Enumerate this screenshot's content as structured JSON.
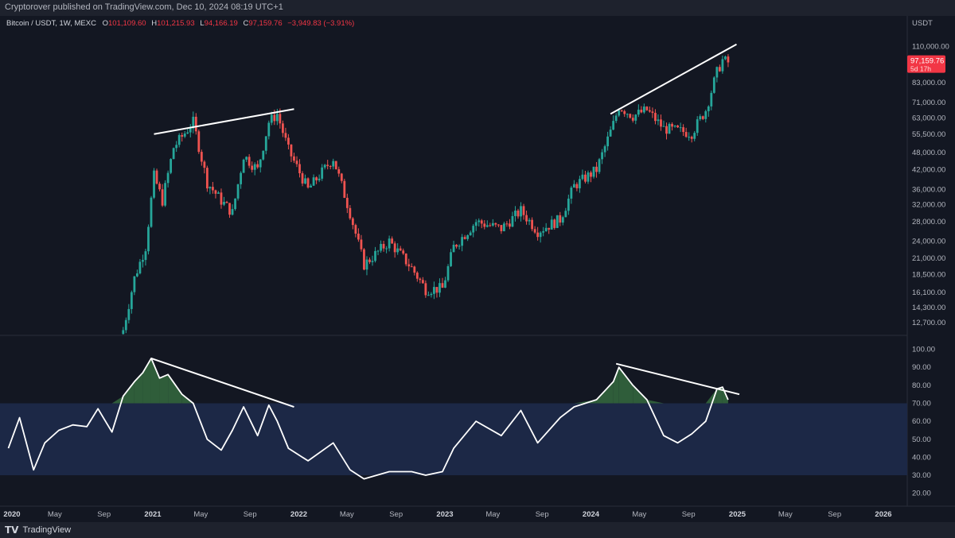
{
  "header": {
    "publisher": "Cryptorover published on TradingView.com, Dec 10, 2024 08:19 UTC+1"
  },
  "legend": {
    "symbol": "Bitcoin / USDT, 1W, MEXC",
    "o_label": "O",
    "o_value": "101,109.60",
    "h_label": "H",
    "h_value": "101,215.93",
    "l_label": "L",
    "l_value": "94,166.19",
    "c_label": "C",
    "c_value": "97,159.76",
    "change": "−3,949.83 (−3.91%)"
  },
  "footer": {
    "brand": "TradingView"
  },
  "colors": {
    "background": "#131722",
    "up": "#26a69a",
    "down": "#ef5350",
    "rsi_line": "#ffffff",
    "rsi_band": "#1c2846",
    "rsi_fill": "#2f5d3a",
    "price_label_bg": "#f23645"
  },
  "chart_data": [
    {
      "type": "candlestick",
      "panel": "price",
      "scale": "log",
      "currency_label": "USDT",
      "price_label": "97,159.76",
      "countdown_label": "5d 17h",
      "y_ticks": [
        "110,000.00",
        "97,000.00",
        "83,000.00",
        "71,000.00",
        "63,000.00",
        "55,500.00",
        "48,000.00",
        "42,000.00",
        "36,000.00",
        "32,000.00",
        "28,000.00",
        "24,000.00",
        "21,000.00",
        "18,500.00",
        "16,100.00",
        "14,300.00",
        "12,700.00"
      ],
      "y_tick_values": [
        110000,
        97000,
        83000,
        71000,
        63000,
        55500,
        48000,
        42000,
        36000,
        32000,
        28000,
        24000,
        21000,
        18500,
        16100,
        14300,
        12700
      ],
      "ylim": [
        11800,
        122000
      ],
      "series": [
        {
          "date": "2020-10-19",
          "value": 12000
        },
        {
          "date": "2020-11-16",
          "value": 18000
        },
        {
          "date": "2020-12-14",
          "value": 23000
        },
        {
          "date": "2021-01-04",
          "value": 40000
        },
        {
          "date": "2021-01-25",
          "value": 33000
        },
        {
          "date": "2021-02-22",
          "value": 50000
        },
        {
          "date": "2021-04-12",
          "value": 61000
        },
        {
          "date": "2021-05-17",
          "value": 38000
        },
        {
          "date": "2021-06-21",
          "value": 33000
        },
        {
          "date": "2021-07-19",
          "value": 30000
        },
        {
          "date": "2021-08-16",
          "value": 47000
        },
        {
          "date": "2021-09-20",
          "value": 42000
        },
        {
          "date": "2021-10-18",
          "value": 61000
        },
        {
          "date": "2021-11-08",
          "value": 65000
        },
        {
          "date": "2021-12-06",
          "value": 49000
        },
        {
          "date": "2022-01-24",
          "value": 36000
        },
        {
          "date": "2022-03-28",
          "value": 46000
        },
        {
          "date": "2022-05-09",
          "value": 30000
        },
        {
          "date": "2022-06-13",
          "value": 20000
        },
        {
          "date": "2022-08-15",
          "value": 24000
        },
        {
          "date": "2022-10-10",
          "value": 19500
        },
        {
          "date": "2022-11-14",
          "value": 16500
        },
        {
          "date": "2022-12-26",
          "value": 16600
        },
        {
          "date": "2023-01-23",
          "value": 23000
        },
        {
          "date": "2023-03-20",
          "value": 28000
        },
        {
          "date": "2023-05-22",
          "value": 26500
        },
        {
          "date": "2023-07-10",
          "value": 30500
        },
        {
          "date": "2023-08-21",
          "value": 26000
        },
        {
          "date": "2023-10-16",
          "value": 28500
        },
        {
          "date": "2023-11-20",
          "value": 37000
        },
        {
          "date": "2024-01-15",
          "value": 42000
        },
        {
          "date": "2024-02-26",
          "value": 60000
        },
        {
          "date": "2024-03-11",
          "value": 69000
        },
        {
          "date": "2024-04-15",
          "value": 64000
        },
        {
          "date": "2024-05-20",
          "value": 67000
        },
        {
          "date": "2024-07-01",
          "value": 58000
        },
        {
          "date": "2024-08-05",
          "value": 57000
        },
        {
          "date": "2024-09-09",
          "value": 56000
        },
        {
          "date": "2024-10-14",
          "value": 67000
        },
        {
          "date": "2024-11-11",
          "value": 90000
        },
        {
          "date": "2024-11-25",
          "value": 99000
        },
        {
          "date": "2024-12-09",
          "value": 97159.76
        }
      ],
      "trendlines": [
        {
          "from": {
            "date": "2021-01-04",
            "value": 55500
          },
          "to": {
            "date": "2021-12-20",
            "value": 67500
          }
        },
        {
          "from": {
            "date": "2024-02-19",
            "value": 65000
          },
          "to": {
            "date": "2024-12-30",
            "value": 112000
          }
        }
      ]
    },
    {
      "type": "line",
      "panel": "rsi",
      "ylim": [
        15,
        106
      ],
      "y_ticks": [
        "100.00",
        "90.00",
        "80.00",
        "70.00",
        "60.00",
        "50.00",
        "40.00",
        "30.00",
        "20.00"
      ],
      "y_tick_values": [
        100,
        90,
        80,
        70,
        60,
        50,
        40,
        30,
        20
      ],
      "band": [
        30,
        70
      ],
      "series": [
        {
          "name": "RSI",
          "x": [
            "2020-01-06",
            "2020-02-03",
            "2020-03-09",
            "2020-04-06",
            "2020-05-11",
            "2020-06-15",
            "2020-07-20",
            "2020-08-17",
            "2020-09-21",
            "2020-10-19",
            "2020-11-16",
            "2020-12-07",
            "2020-12-28",
            "2021-01-18",
            "2021-02-08",
            "2021-03-15",
            "2021-04-12",
            "2021-05-17",
            "2021-06-21",
            "2021-07-19",
            "2021-08-16",
            "2021-09-20",
            "2021-10-18",
            "2021-11-08",
            "2021-12-06",
            "2022-01-24",
            "2022-03-28",
            "2022-05-09",
            "2022-06-13",
            "2022-08-15",
            "2022-10-10",
            "2022-11-14",
            "2022-12-26",
            "2023-01-23",
            "2023-03-20",
            "2023-05-22",
            "2023-07-10",
            "2023-08-21",
            "2023-10-16",
            "2023-11-20",
            "2024-01-15",
            "2024-02-26",
            "2024-03-11",
            "2024-04-15",
            "2024-05-20",
            "2024-07-01",
            "2024-08-05",
            "2024-09-09",
            "2024-10-14",
            "2024-11-11",
            "2024-11-25",
            "2024-12-09"
          ],
          "values": [
            45,
            62,
            33,
            48,
            55,
            58,
            57,
            67,
            54,
            74,
            82,
            87,
            95,
            84,
            86,
            75,
            70,
            50,
            44,
            55,
            68,
            52,
            69,
            60,
            45,
            38,
            48,
            33,
            28,
            32,
            32,
            30,
            32,
            45,
            60,
            52,
            66,
            48,
            62,
            68,
            72,
            82,
            90,
            80,
            72,
            52,
            48,
            53,
            60,
            78,
            79,
            72
          ]
        }
      ],
      "trendlines": [
        {
          "from": {
            "date": "2020-12-28",
            "value": 95
          },
          "to": {
            "date": "2021-12-20",
            "value": 68
          }
        },
        {
          "from": {
            "date": "2024-03-04",
            "value": 92
          },
          "to": {
            "date": "2025-01-06",
            "value": 75
          }
        }
      ]
    }
  ],
  "time_axis": {
    "labels": [
      {
        "text": "2020",
        "date": "2020-01-01",
        "major": true
      },
      {
        "text": "May",
        "date": "2020-05-01",
        "major": false
      },
      {
        "text": "Sep",
        "date": "2020-09-01",
        "major": false
      },
      {
        "text": "2021",
        "date": "2021-01-01",
        "major": true
      },
      {
        "text": "May",
        "date": "2021-05-01",
        "major": false
      },
      {
        "text": "Sep",
        "date": "2021-09-01",
        "major": false
      },
      {
        "text": "2022",
        "date": "2022-01-01",
        "major": true
      },
      {
        "text": "May",
        "date": "2022-05-01",
        "major": false
      },
      {
        "text": "Sep",
        "date": "2022-09-01",
        "major": false
      },
      {
        "text": "2023",
        "date": "2023-01-01",
        "major": true
      },
      {
        "text": "May",
        "date": "2023-05-01",
        "major": false
      },
      {
        "text": "Sep",
        "date": "2023-09-01",
        "major": false
      },
      {
        "text": "2024",
        "date": "2024-01-01",
        "major": true
      },
      {
        "text": "May",
        "date": "2024-05-01",
        "major": false
      },
      {
        "text": "Sep",
        "date": "2024-09-01",
        "major": false
      },
      {
        "text": "2025",
        "date": "2025-01-01",
        "major": true
      },
      {
        "text": "May",
        "date": "2025-05-01",
        "major": false
      },
      {
        "text": "Sep",
        "date": "2025-09-01",
        "major": false
      },
      {
        "text": "2026",
        "date": "2026-01-01",
        "major": true
      }
    ]
  }
}
